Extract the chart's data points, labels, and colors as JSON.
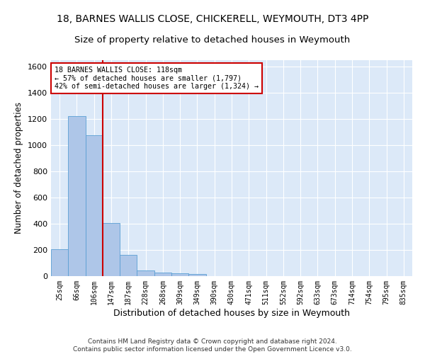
{
  "title1": "18, BARNES WALLIS CLOSE, CHICKERELL, WEYMOUTH, DT3 4PP",
  "title2": "Size of property relative to detached houses in Weymouth",
  "xlabel": "Distribution of detached houses by size in Weymouth",
  "ylabel": "Number of detached properties",
  "footnote": "Contains HM Land Registry data © Crown copyright and database right 2024.\nContains public sector information licensed under the Open Government Licence v3.0.",
  "bar_labels": [
    "25sqm",
    "66sqm",
    "106sqm",
    "147sqm",
    "187sqm",
    "228sqm",
    "268sqm",
    "309sqm",
    "349sqm",
    "390sqm",
    "430sqm",
    "471sqm",
    "511sqm",
    "552sqm",
    "592sqm",
    "633sqm",
    "673sqm",
    "714sqm",
    "754sqm",
    "795sqm",
    "835sqm"
  ],
  "bar_values": [
    204,
    1224,
    1075,
    408,
    160,
    45,
    28,
    20,
    15,
    0,
    0,
    0,
    0,
    0,
    0,
    0,
    0,
    0,
    0,
    0,
    0
  ],
  "bar_color": "#aec6e8",
  "bar_edge_color": "#5a9fd4",
  "vline_x": 2.5,
  "vline_color": "#cc0000",
  "annotation_line1": "18 BARNES WALLIS CLOSE: 118sqm",
  "annotation_line2": "← 57% of detached houses are smaller (1,797)",
  "annotation_line3": "42% of semi-detached houses are larger (1,324) →",
  "annotation_box_color": "#cc0000",
  "ylim": [
    0,
    1650
  ],
  "yticks": [
    0,
    200,
    400,
    600,
    800,
    1000,
    1200,
    1400,
    1600
  ],
  "background_color": "#dce9f8",
  "grid_color": "#ffffff",
  "title1_fontsize": 10,
  "title2_fontsize": 9.5,
  "xlabel_fontsize": 9,
  "ylabel_fontsize": 8.5
}
